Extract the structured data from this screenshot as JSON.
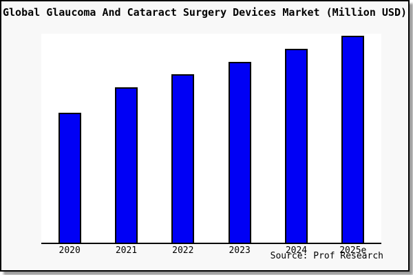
{
  "figure": {
    "title": "Global Glaucoma And Cataract Surgery Devices Market (Million USD)",
    "source_note": "Source: Prof Research"
  },
  "chart_data": {
    "type": "bar",
    "title": "Global Glaucoma And Cataract Surgery Devices Market (Million USD)",
    "categories": [
      "2020",
      "2021",
      "2022",
      "2023",
      "2024",
      "2025e"
    ],
    "values_pct_of_max": [
      62.8,
      75.1,
      81.4,
      87.4,
      93.7,
      100.0
    ],
    "bar_height_fractions_of_plot": [
      0.622,
      0.743,
      0.806,
      0.865,
      0.928,
      0.99
    ],
    "xlabel": "",
    "ylabel": "",
    "y_axis_ticks": [],
    "gridlines": false,
    "legend": null,
    "bar_color": "#0000f5",
    "bar_border_color": "#000000",
    "plot_bg": "#ffffff",
    "figure_bg": "#f8f8f8",
    "source_note": "Source: Prof Research"
  }
}
